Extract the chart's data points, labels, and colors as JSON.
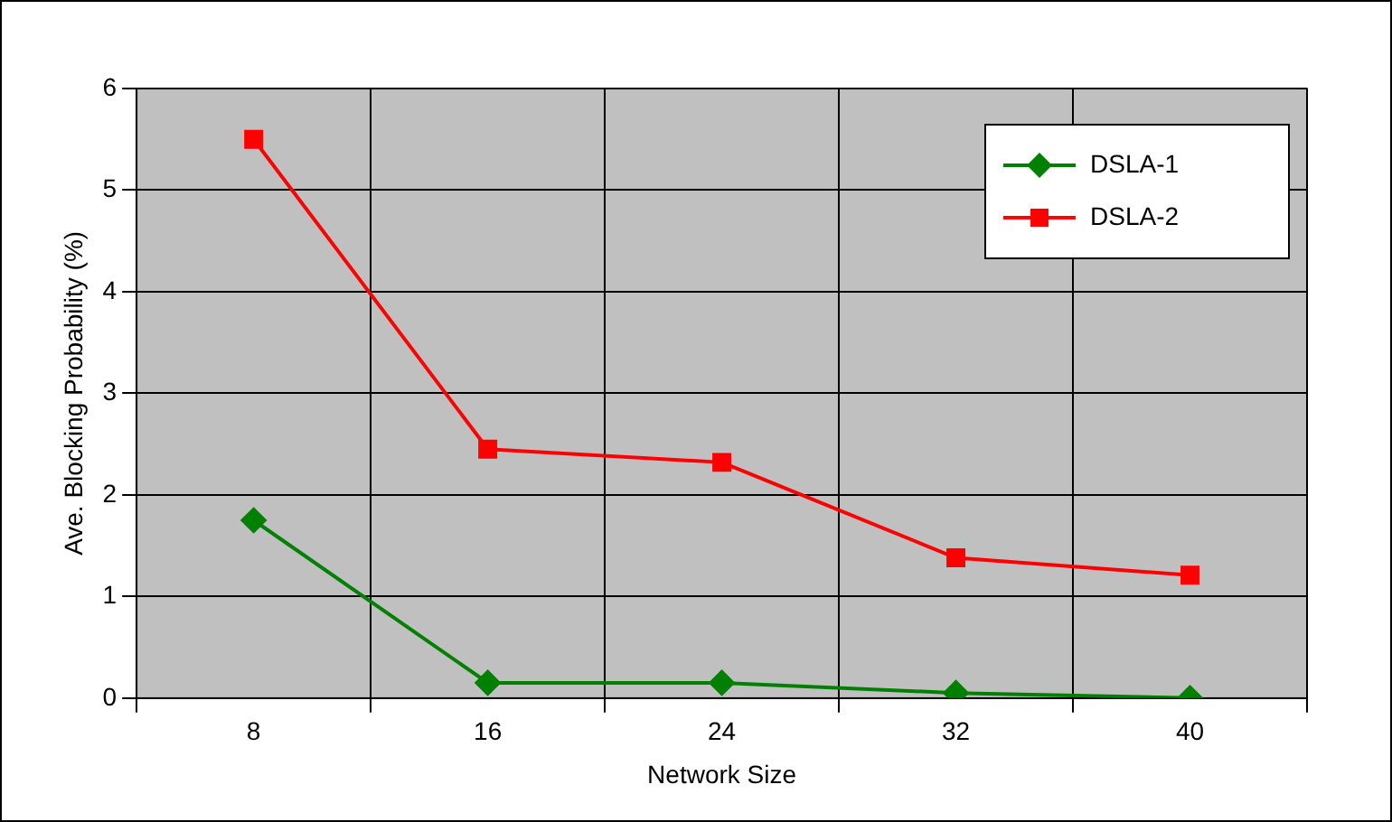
{
  "chart_data": {
    "type": "line",
    "xlabel": "Network Size",
    "ylabel": "Ave. Blocking Probability (%)",
    "categories": [
      "8",
      "16",
      "24",
      "32",
      "40"
    ],
    "series": [
      {
        "name": "DSLA-1",
        "color": "#008000",
        "marker": "diamond",
        "values": [
          1.75,
          0.15,
          0.15,
          0.05,
          0
        ]
      },
      {
        "name": "DSLA-2",
        "color": "#ff0000",
        "marker": "square",
        "values": [
          5.5,
          2.45,
          2.32,
          1.38,
          1.21
        ]
      }
    ],
    "ylim": [
      0,
      6
    ],
    "yticks": [
      0,
      1,
      2,
      3,
      4,
      5,
      6
    ],
    "grid": true,
    "legend": "top right",
    "line_style": "solid"
  }
}
